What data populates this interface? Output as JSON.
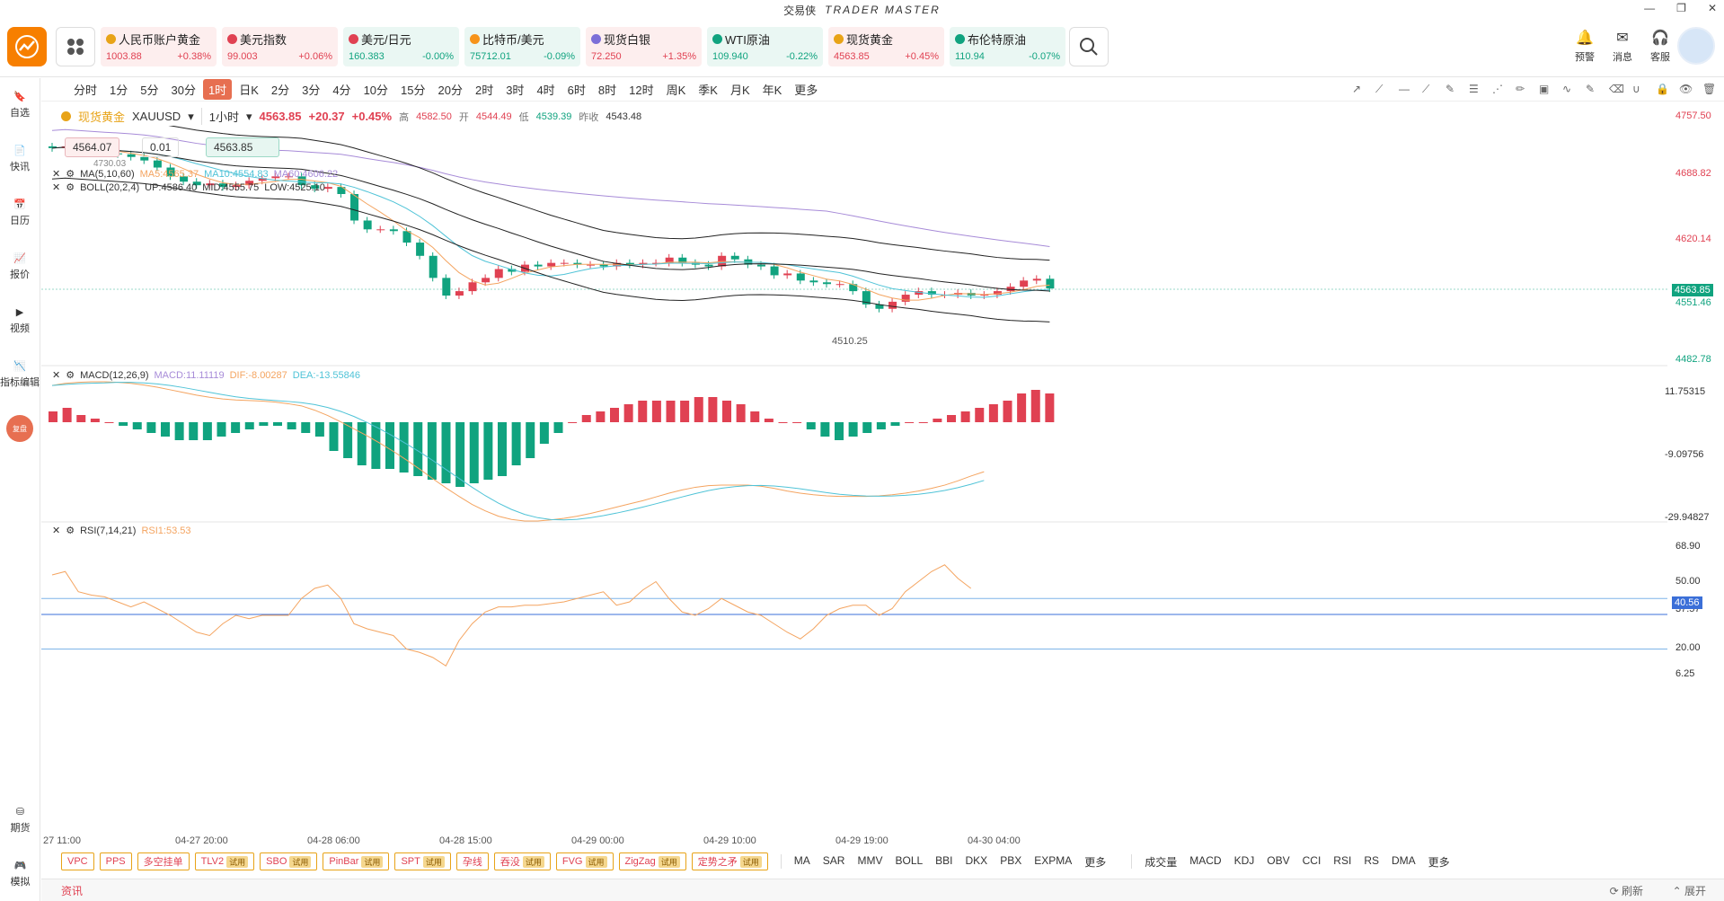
{
  "window": {
    "title_cn": "交易侠",
    "title_en": "TRADER MASTER"
  },
  "tickers": [
    {
      "name": "人民币账户黄金",
      "price": "1003.88",
      "change": "+0.38%",
      "dir": "up",
      "color": "#e8a317"
    },
    {
      "name": "美元指数",
      "price": "99.003",
      "change": "+0.06%",
      "dir": "up",
      "color": "#e04152"
    },
    {
      "name": "美元/日元",
      "price": "160.383",
      "change": "-0.00%",
      "dir": "down",
      "color": "#e04152"
    },
    {
      "name": "比特币/美元",
      "price": "75712.01",
      "change": "-0.09%",
      "dir": "down",
      "color": "#f7931a"
    },
    {
      "name": "现货白银",
      "price": "72.250",
      "change": "+1.35%",
      "dir": "up",
      "color": "#7c6fd8"
    },
    {
      "name": "WTI原油",
      "price": "109.940",
      "change": "-0.22%",
      "dir": "down",
      "color": "#10a37f"
    },
    {
      "name": "现货黄金",
      "price": "4563.85",
      "change": "+0.45%",
      "dir": "up",
      "color": "#e8a317"
    },
    {
      "name": "布伦特原油",
      "price": "110.94",
      "change": "-0.07%",
      "dir": "down",
      "color": "#10a37f"
    }
  ],
  "right_tools": [
    "预警",
    "消息",
    "客服"
  ],
  "sidebar": [
    "自选",
    "快讯",
    "日历",
    "报价",
    "视频",
    "指标编辑"
  ],
  "sidebar_badge": "复盘",
  "sidebar_bottom": [
    "期货",
    "模拟"
  ],
  "timeframes": [
    "分时",
    "1分",
    "5分",
    "30分",
    "1时",
    "日K",
    "2分",
    "3分",
    "4分",
    "10分",
    "15分",
    "20分",
    "2时",
    "3时",
    "4时",
    "6时",
    "8时",
    "12时",
    "周K",
    "季K",
    "月K",
    "年K",
    "更多"
  ],
  "active_tf": "1时",
  "symbol": {
    "name": "现货黄金",
    "code": "XAUUSD",
    "interval": "1小时",
    "price": "4563.85",
    "change": "+20.37",
    "pct": "+0.45%",
    "high_label": "高",
    "high": "4582.50",
    "open_label": "开",
    "open": "4544.49",
    "low_label": "低",
    "low": "4539.39",
    "prev_label": "昨收",
    "prev": "4543.48"
  },
  "order": {
    "sell": "4564.07",
    "qty": "0.01",
    "buy": "4563.85",
    "mark": "4730.03"
  },
  "legends": {
    "ma": {
      "label": "MA(5,10,60)",
      "ma5": "MA5:4565.37",
      "ma10": "MA10:4554.83",
      "ma60": "MA60:4606.22"
    },
    "boll": {
      "label": "BOLL(20,2,4)",
      "up": "UP:4586.40",
      "mid": "MID:4555.75",
      "low": "LOW:4525.10"
    },
    "macd": {
      "label": "MACD(12,26,9)",
      "macd": "MACD:11.11119",
      "dif": "DIF:-8.00287",
      "dea": "DEA:-13.55846"
    },
    "rsi": {
      "label": "RSI(7,14,21)",
      "rsi1": "RSI1:53.53"
    }
  },
  "price_axis": [
    "4757.50",
    "4688.82",
    "4620.14",
    "4551.46",
    "4482.78"
  ],
  "current_price": "4563.85",
  "low_mark": "4510.25",
  "macd_axis": [
    "11.75315",
    "-9.09756",
    "-29.94827"
  ],
  "rsi_axis": [
    "68.90",
    "50.00",
    "37.57",
    "20.00",
    "6.25"
  ],
  "rsi_current": "40.56",
  "time_axis": [
    "27 11:00",
    "04-27 20:00",
    "04-28 06:00",
    "04-28 15:00",
    "04-29 00:00",
    "04-29 10:00",
    "04-29 19:00",
    "04-30 04:00"
  ],
  "tags": [
    {
      "label": "VPC",
      "badge": ""
    },
    {
      "label": "PPS",
      "badge": ""
    },
    {
      "label": "多空挂单",
      "badge": ""
    },
    {
      "label": "TLV2",
      "badge": "试用"
    },
    {
      "label": "SBO",
      "badge": "试用"
    },
    {
      "label": "PinBar",
      "badge": "试用"
    },
    {
      "label": "SPT",
      "badge": "试用"
    },
    {
      "label": "孕线",
      "badge": ""
    },
    {
      "label": "吞没",
      "badge": "试用"
    },
    {
      "label": "FVG",
      "badge": "试用"
    },
    {
      "label": "ZigZag",
      "badge": "试用"
    },
    {
      "label": "定势之矛",
      "badge": "试用"
    }
  ],
  "main_indicators": [
    "MA",
    "SAR",
    "MMV",
    "BOLL",
    "BBI",
    "DKX",
    "PBX",
    "EXPMA",
    "更多"
  ],
  "sub_indicators": [
    "成交量",
    "MACD",
    "KDJ",
    "OBV",
    "CCI",
    "RSI",
    "RS",
    "DMA",
    "更多"
  ],
  "news": {
    "label": "资讯",
    "refresh": "刷新",
    "expand": "展开"
  },
  "colors": {
    "up": "#e04152",
    "down": "#10a37f",
    "ma5": "#f4a460",
    "ma10": "#4fc3d7",
    "ma60": "#a78bd8"
  },
  "chart_data": {
    "type": "candlestick",
    "x": [
      "27 11:00",
      "04-27 20:00",
      "04-28 06:00",
      "04-28 15:00",
      "04-29 00:00",
      "04-29 10:00",
      "04-29 19:00",
      "04-30 04:00"
    ],
    "ylim": [
      4482.78,
      4757.5
    ],
    "closes": [
      4722,
      4724,
      4720,
      4718,
      4716,
      4715,
      4712,
      4708,
      4700,
      4690,
      4684,
      4680,
      4682,
      4678,
      4680,
      4685,
      4688,
      4690,
      4690,
      4680,
      4676,
      4678,
      4670,
      4640,
      4630,
      4630,
      4628,
      4615,
      4600,
      4575,
      4555,
      4560,
      4570,
      4575,
      4585,
      4582,
      4590,
      4588,
      4592,
      4592,
      4590,
      4590,
      4588,
      4592,
      4590,
      4592,
      4592,
      4598,
      4592,
      4590,
      4588,
      4600,
      4596,
      4590,
      4588,
      4578,
      4580,
      4572,
      4570,
      4568,
      4568,
      4560,
      4545,
      4540,
      4548,
      4556,
      4560,
      4556,
      4556,
      4558,
      4555,
      4556,
      4560,
      4565,
      4572,
      4574,
      4563
    ],
    "rsi": [
      64,
      66,
      54,
      52,
      51,
      48,
      45,
      48,
      44,
      40,
      35,
      30,
      28,
      35,
      40,
      38,
      40,
      40,
      40,
      50,
      56,
      58,
      50,
      35,
      32,
      30,
      28,
      20,
      18,
      15,
      10,
      25,
      35,
      42,
      45,
      45,
      46,
      46,
      47,
      48,
      50,
      52,
      54,
      46,
      48,
      55,
      60,
      50,
      42,
      40,
      44,
      50,
      46,
      42,
      40,
      35,
      30,
      26,
      32,
      40,
      44,
      46,
      46,
      40,
      44,
      54,
      60,
      66,
      70,
      62,
      56
    ],
    "macd_hist": [
      3,
      4,
      2,
      1,
      0,
      -1,
      -2,
      -3,
      -4,
      -5,
      -5,
      -5,
      -4,
      -3,
      -2,
      -1,
      -1,
      -2,
      -3,
      -4,
      -8,
      -10,
      -12,
      -13,
      -13,
      -14,
      -15,
      -16,
      -17,
      -18,
      -17,
      -16,
      -15,
      -12,
      -10,
      -6,
      -3,
      0,
      2,
      3,
      4,
      5,
      6,
      6,
      6,
      6,
      7,
      7,
      6,
      5,
      3,
      1,
      0,
      0,
      -2,
      -4,
      -5,
      -4,
      -3,
      -2,
      -1,
      0,
      0,
      1,
      2,
      3,
      4,
      5,
      6,
      8,
      9,
      8
    ]
  }
}
